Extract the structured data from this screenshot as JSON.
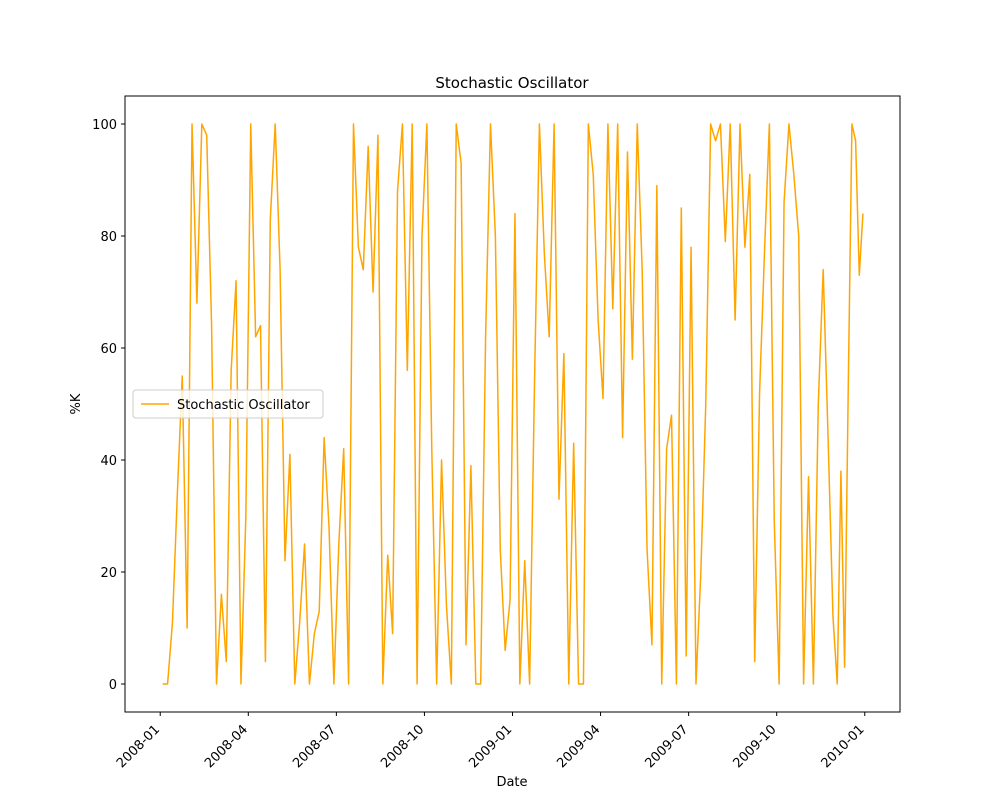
{
  "chart_data": {
    "type": "line",
    "title": "Stochastic Oscillator",
    "xlabel": "Date",
    "ylabel": "%K",
    "x": [
      "2008-01",
      "2008-01",
      "2008-01",
      "2008-01",
      "2008-01",
      "2008-01",
      "2008-02",
      "2008-02",
      "2008-02",
      "2008-02",
      "2008-02",
      "2008-02",
      "2008-03",
      "2008-03",
      "2008-03",
      "2008-03",
      "2008-03",
      "2008-03",
      "2008-04",
      "2008-04",
      "2008-04",
      "2008-04",
      "2008-04",
      "2008-04",
      "2008-05",
      "2008-05",
      "2008-05",
      "2008-05",
      "2008-05",
      "2008-05",
      "2008-06",
      "2008-06",
      "2008-06",
      "2008-06",
      "2008-06",
      "2008-06",
      "2008-07",
      "2008-07",
      "2008-07",
      "2008-07",
      "2008-07",
      "2008-07",
      "2008-08",
      "2008-08",
      "2008-08",
      "2008-08",
      "2008-08",
      "2008-08",
      "2008-09",
      "2008-09",
      "2008-09",
      "2008-09",
      "2008-09",
      "2008-09",
      "2008-10",
      "2008-10",
      "2008-10",
      "2008-10",
      "2008-10",
      "2008-10",
      "2008-11",
      "2008-11",
      "2008-11",
      "2008-11",
      "2008-11",
      "2008-11",
      "2008-12",
      "2008-12",
      "2008-12",
      "2008-12",
      "2008-12",
      "2008-12",
      "2009-01",
      "2009-01",
      "2009-01",
      "2009-01",
      "2009-01",
      "2009-01",
      "2009-02",
      "2009-02",
      "2009-02",
      "2009-02",
      "2009-02",
      "2009-02",
      "2009-03",
      "2009-03",
      "2009-03",
      "2009-03",
      "2009-03",
      "2009-03",
      "2009-04",
      "2009-04",
      "2009-04",
      "2009-04",
      "2009-04",
      "2009-04",
      "2009-05",
      "2009-05",
      "2009-05",
      "2009-05",
      "2009-05",
      "2009-05",
      "2009-06",
      "2009-06",
      "2009-06",
      "2009-06",
      "2009-06",
      "2009-06",
      "2009-07",
      "2009-07",
      "2009-07",
      "2009-07",
      "2009-07",
      "2009-07",
      "2009-08",
      "2009-08",
      "2009-08",
      "2009-08",
      "2009-08",
      "2009-08",
      "2009-09",
      "2009-09",
      "2009-09",
      "2009-09",
      "2009-09",
      "2009-09",
      "2009-10",
      "2009-10",
      "2009-10",
      "2009-10",
      "2009-10",
      "2009-10",
      "2009-11",
      "2009-11",
      "2009-11",
      "2009-11",
      "2009-11",
      "2009-11",
      "2009-12",
      "2009-12",
      "2009-12",
      "2009-12",
      "2009-12",
      "2009-12",
      "2009-12",
      "2009-12"
    ],
    "series": [
      {
        "name": "Stochastic Oscillator",
        "color": "#ffa500",
        "values": [
          0,
          0,
          11,
          34,
          55,
          10,
          100,
          68,
          100,
          98,
          64,
          0,
          16,
          4,
          56,
          72,
          0,
          30,
          100,
          62,
          64,
          4,
          83,
          100,
          74,
          22,
          41,
          0,
          11,
          25,
          0,
          9,
          13,
          44,
          28,
          0,
          25,
          42,
          0,
          100,
          78,
          74,
          96,
          70,
          98,
          0,
          23,
          9,
          88,
          100,
          56,
          100,
          0,
          80,
          100,
          42,
          0,
          40,
          14,
          0,
          100,
          93,
          7,
          39,
          0,
          0,
          62,
          100,
          80,
          24,
          6,
          15,
          84,
          0,
          22,
          0,
          54,
          100,
          77,
          62,
          100,
          33,
          59,
          0,
          43,
          0,
          0,
          100,
          91,
          65,
          51,
          100,
          67,
          100,
          44,
          95,
          58,
          100,
          74,
          24,
          7,
          89,
          0,
          42,
          48,
          0,
          85,
          5,
          78,
          0,
          20,
          50,
          100,
          97,
          100,
          79,
          100,
          65,
          100,
          78,
          91,
          4,
          52,
          77,
          100,
          29,
          0,
          86,
          100,
          91,
          80,
          0,
          37,
          0,
          50,
          74,
          44,
          12,
          0,
          38,
          3,
          53,
          100,
          97,
          73,
          84
        ]
      }
    ],
    "ylim": [
      -5,
      105
    ],
    "yticks": [
      0,
      20,
      40,
      60,
      80,
      100
    ],
    "xticks": [
      "2008-01",
      "2008-04",
      "2008-07",
      "2008-10",
      "2009-01",
      "2009-04",
      "2009-07",
      "2009-10",
      "2010-01"
    ],
    "legend": "center left"
  }
}
